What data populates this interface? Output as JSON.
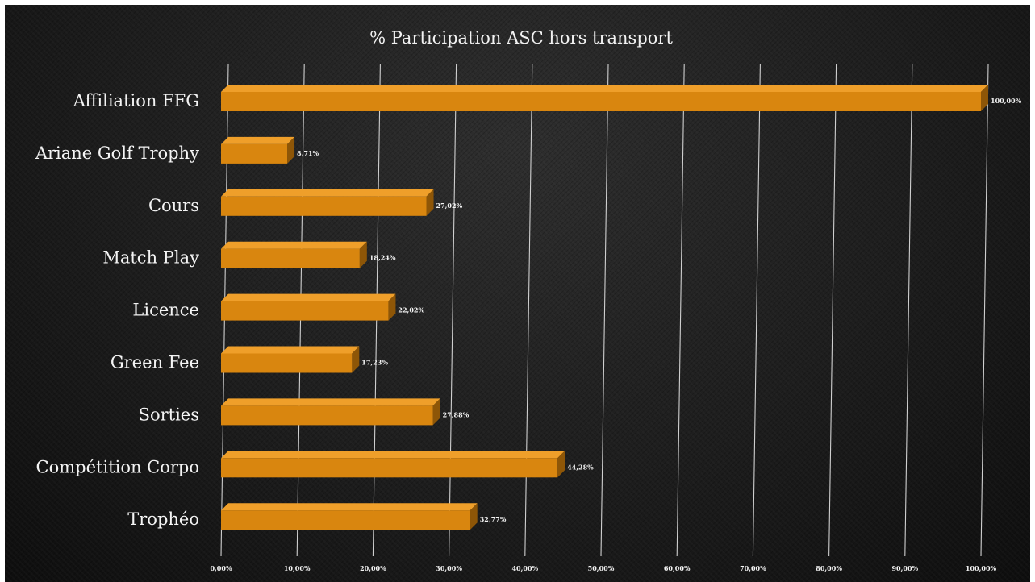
{
  "chart_data": {
    "type": "bar",
    "orientation": "horizontal",
    "title": "% Participation ASC hors transport",
    "categories": [
      "Affiliation FFG",
      "Ariane Golf Trophy",
      "Cours",
      "Match Play",
      "Licence",
      "Green Fee",
      "Sorties",
      "Compétition Corpo",
      "Trophéo"
    ],
    "values": [
      100.0,
      8.71,
      27.02,
      18.24,
      22.02,
      17.23,
      27.88,
      44.28,
      32.77
    ],
    "data_labels": [
      "100,00%",
      "8,71%",
      "27,02%",
      "18,24%",
      "22,02%",
      "17,23%",
      "27,88%",
      "44,28%",
      "32,77%"
    ],
    "x_ticks": [
      "0,00%",
      "10,00%",
      "20,00%",
      "30,00%",
      "40,00%",
      "50,00%",
      "60,00%",
      "70,00%",
      "80,00%",
      "90,00%",
      "100,00%"
    ],
    "xlim": [
      0,
      100
    ],
    "grid": "vertical",
    "legend": "none",
    "colors": {
      "bar_front": "#d9860f",
      "bar_top": "#ef9f2a",
      "bar_side": "#8e5607",
      "grid": "#cfcfcf",
      "background": "#1b1b1b",
      "text": "#f4f4f4"
    }
  }
}
